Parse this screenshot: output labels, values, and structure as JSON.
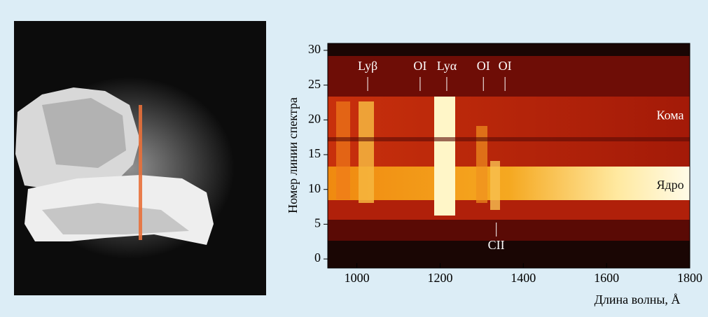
{
  "chart_data": {
    "type": "spectrum",
    "x_label": "Длина волны, Å",
    "y_label": "Номер линии спектра",
    "xlim": [
      930,
      1800
    ],
    "xticks": [
      1000,
      1200,
      1400,
      1600,
      1800
    ],
    "ylim": [
      -1.3,
      31
    ],
    "yticks": [
      0,
      5,
      10,
      15,
      20,
      25,
      30
    ],
    "line_labels": [
      {
        "text": "Lyβ",
        "x": 1026
      },
      {
        "text": "OI",
        "x": 1152
      },
      {
        "text": "Lyα",
        "x": 1216
      },
      {
        "text": "OI",
        "x": 1304
      },
      {
        "text": "OI",
        "x": 1356
      }
    ],
    "bottom_labels": [
      {
        "text": "CII",
        "x": 1335
      }
    ],
    "region_labels": [
      {
        "text": "Кома",
        "x": 1720,
        "y": 20.5
      },
      {
        "text": "Ядро",
        "x": 1720,
        "y": 10.5
      }
    ]
  }
}
